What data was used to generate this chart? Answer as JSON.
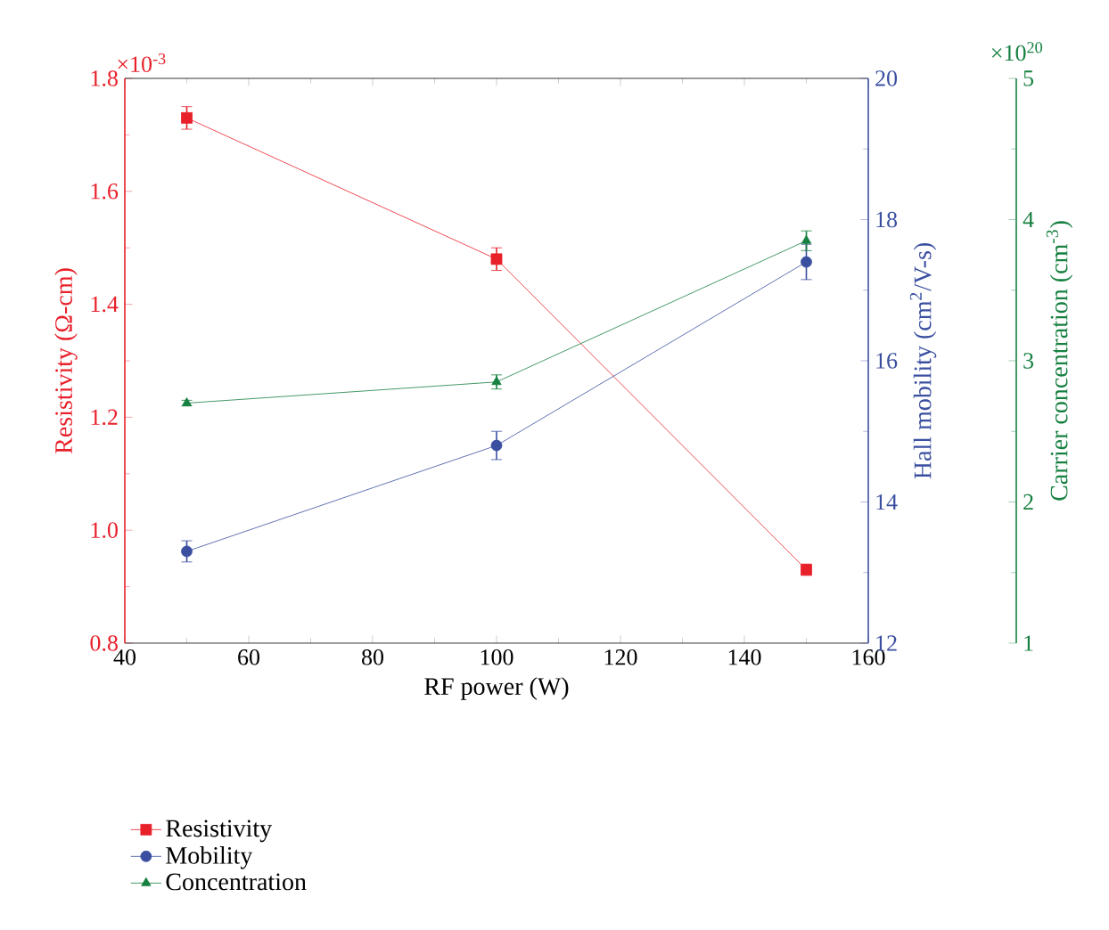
{
  "chart_data": {
    "type": "line",
    "xlabel": "RF power (W)",
    "ylabel": "Resistivity (Ω-cm)",
    "y2label": "Hall mobility (cm$^{2}$/V-s)",
    "y3label": "Carrier concentration (cm$^{-3}$)",
    "annotations": [
      "×10$^{-3}$",
      "×10$^{20}$"
    ],
    "x": [
      50,
      100,
      150
    ],
    "xlim": [
      40,
      160
    ],
    "xticks": [
      40,
      60,
      80,
      100,
      120,
      140,
      160
    ],
    "ylim": [
      0.8,
      1.8
    ],
    "yticks": [
      {
        "value": 0.8,
        "label": "0.8"
      },
      {
        "value": 1.0,
        "label": "1.0"
      },
      {
        "value": 1.2,
        "label": "1.2"
      },
      {
        "value": 1.4,
        "label": "1.4"
      },
      {
        "value": 1.6,
        "label": "1.6"
      },
      {
        "value": 1.8,
        "label": "1.8"
      }
    ],
    "y2lim": [
      12,
      20
    ],
    "y2ticks": [
      12,
      14,
      16,
      18,
      20
    ],
    "y3lim": [
      1,
      5
    ],
    "y3ticks": [
      1,
      2,
      3,
      4,
      5
    ],
    "legend": "bottom",
    "grid": false,
    "series": [
      {
        "name": "Resistivity",
        "color": "#e8202a",
        "marker": "square",
        "values": [
          1.73,
          1.48,
          0.93
        ],
        "errors": [
          0.02,
          0.02,
          0.01
        ]
      },
      {
        "name": "Mobility",
        "color": "#3a4fa0",
        "marker": "circle",
        "axis": "y2",
        "values": [
          13.3,
          14.8,
          17.4
        ],
        "errors": [
          0.15,
          0.2,
          0.25
        ]
      },
      {
        "name": "Concentration",
        "color": "#168040",
        "marker": "triangle",
        "axis": "y3",
        "values": [
          2.7,
          2.85,
          3.85
        ],
        "errors": [
          0.02,
          0.05,
          0.07
        ]
      }
    ]
  }
}
